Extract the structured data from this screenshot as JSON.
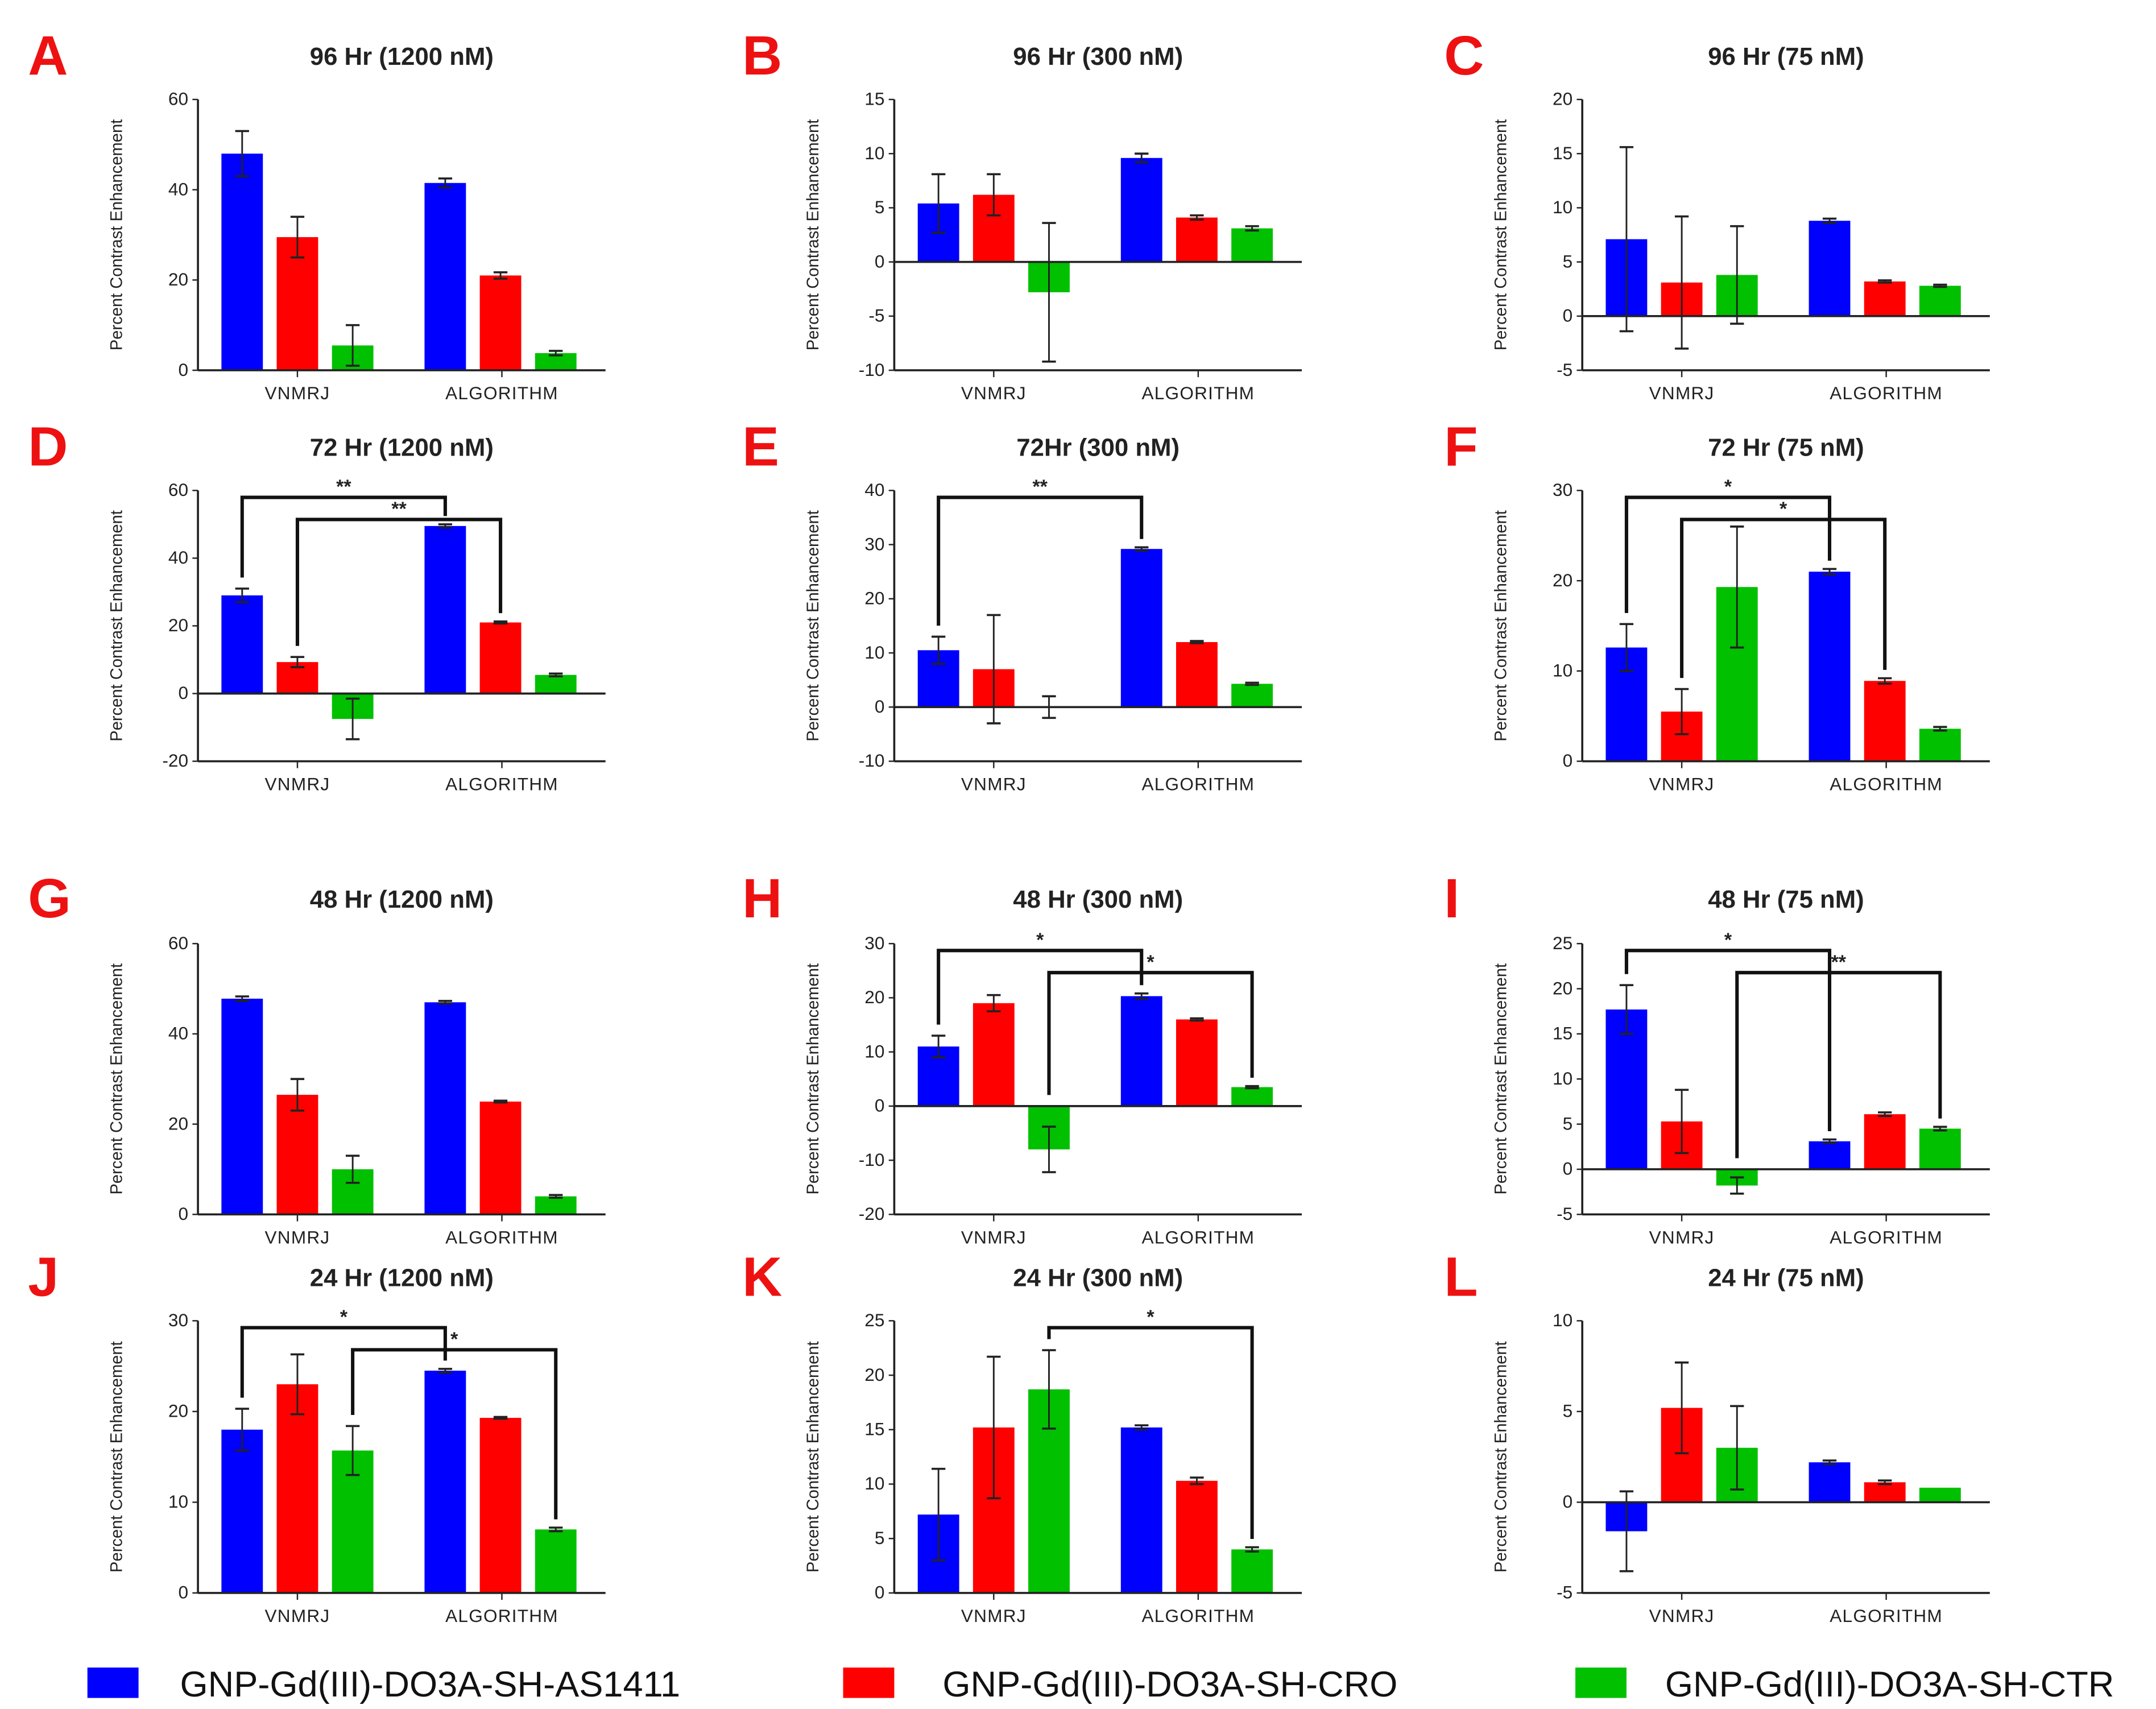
{
  "colors": {
    "letter": "#ee1111",
    "series": [
      "#0000ff",
      "#ff0000",
      "#00c000"
    ],
    "axis": "#222222"
  },
  "legend": [
    "GNP-Gd(III)-DO3A-SH-AS1411",
    "GNP-Gd(III)-DO3A-SH-CRO",
    "GNP-Gd(III)-DO3A-SH-CTR"
  ],
  "chart_data": [
    {
      "type": "bar",
      "letter": "A",
      "title": "96 Hr (1200 nM)",
      "ylabel": "Percent Contrast Enhancement",
      "categories": [
        "VNMRJ",
        "ALGORITHM"
      ],
      "ylim": [
        0,
        60
      ],
      "yticks": [
        "0",
        "20",
        "40",
        "60"
      ],
      "tickvals": [
        0,
        20,
        40,
        60
      ],
      "series": [
        {
          "name": "GNP-Gd(III)-DO3A-SH-AS1411",
          "values": [
            48,
            41.5
          ],
          "errors": [
            5,
            1
          ]
        },
        {
          "name": "GNP-Gd(III)-DO3A-SH-CRO",
          "values": [
            29.5,
            21
          ],
          "errors": [
            4.5,
            0.7
          ]
        },
        {
          "name": "GNP-Gd(III)-DO3A-SH-CTR",
          "values": [
            5.5,
            3.8
          ],
          "errors": [
            4.5,
            0.5
          ]
        }
      ],
      "significance": []
    },
    {
      "type": "bar",
      "letter": "B",
      "title": "96 Hr (300 nM)",
      "ylabel": "Percent Contrast Enhancement",
      "categories": [
        "VNMRJ",
        "ALGORITHM"
      ],
      "ylim": [
        -10,
        15
      ],
      "yticks": [
        "-10",
        "-5",
        "0",
        "5",
        "10",
        "15"
      ],
      "tickvals": [
        -10,
        -5,
        0,
        5,
        10,
        15
      ],
      "series": [
        {
          "name": "GNP-Gd(III)-DO3A-SH-AS1411",
          "values": [
            5.4,
            9.6
          ],
          "errors": [
            2.7,
            0.4
          ]
        },
        {
          "name": "GNP-Gd(III)-DO3A-SH-CRO",
          "values": [
            6.2,
            4.1
          ],
          "errors": [
            1.9,
            0.2
          ]
        },
        {
          "name": "GNP-Gd(III)-DO3A-SH-CTR",
          "values": [
            -2.8,
            3.1
          ],
          "errors": [
            6.4,
            0.2
          ]
        }
      ],
      "significance": []
    },
    {
      "type": "bar",
      "letter": "C",
      "title": "96 Hr (75 nM)",
      "ylabel": "Percent Contrast Enhancement",
      "categories": [
        "VNMRJ",
        "ALGORITHM"
      ],
      "ylim": [
        -5,
        20
      ],
      "yticks": [
        "-5",
        "0",
        "5",
        "10",
        "15",
        "20"
      ],
      "tickvals": [
        -5,
        0,
        5,
        10,
        15,
        20
      ],
      "series": [
        {
          "name": "GNP-Gd(III)-DO3A-SH-AS1411",
          "values": [
            7.1,
            8.8
          ],
          "errors": [
            8.5,
            0.2
          ]
        },
        {
          "name": "GNP-Gd(III)-DO3A-SH-CRO",
          "values": [
            3.1,
            3.2
          ],
          "errors": [
            6.1,
            0.1
          ]
        },
        {
          "name": "GNP-Gd(III)-DO3A-SH-CTR",
          "values": [
            3.8,
            2.8
          ],
          "errors": [
            4.5,
            0.1
          ]
        }
      ],
      "significance": []
    },
    {
      "type": "bar",
      "letter": "D",
      "title": "72 Hr (1200 nM)",
      "ylabel": "Percent Contrast Enhancement",
      "categories": [
        "VNMRJ",
        "ALGORITHM"
      ],
      "ylim": [
        -20,
        60
      ],
      "yticks": [
        "-20",
        "0",
        "20",
        "40",
        "60"
      ],
      "tickvals": [
        -20,
        0,
        20,
        40,
        60
      ],
      "series": [
        {
          "name": "GNP-Gd(III)-DO3A-SH-AS1411",
          "values": [
            29,
            49.5
          ],
          "errors": [
            2,
            0.5
          ]
        },
        {
          "name": "GNP-Gd(III)-DO3A-SH-CRO",
          "values": [
            9.3,
            21
          ],
          "errors": [
            1.5,
            0.3
          ]
        },
        {
          "name": "GNP-Gd(III)-DO3A-SH-CTR",
          "values": [
            -7.5,
            5.5
          ],
          "errors": [
            6,
            0.4
          ]
        }
      ],
      "significance": [
        {
          "series": 0,
          "label": "**"
        },
        {
          "series": 1,
          "label": "**"
        }
      ]
    },
    {
      "type": "bar",
      "letter": "E",
      "title": "72Hr (300 nM)",
      "ylabel": "Percent Contrast Enhancement",
      "categories": [
        "VNMRJ",
        "ALGORITHM"
      ],
      "ylim": [
        -10,
        40
      ],
      "yticks": [
        "-10",
        "0",
        "10",
        "20",
        "30",
        "40"
      ],
      "tickvals": [
        -10,
        0,
        10,
        20,
        30,
        40
      ],
      "series": [
        {
          "name": "GNP-Gd(III)-DO3A-SH-AS1411",
          "values": [
            10.5,
            29.2
          ],
          "errors": [
            2.5,
            0.3
          ]
        },
        {
          "name": "GNP-Gd(III)-DO3A-SH-CRO",
          "values": [
            7,
            12
          ],
          "errors": [
            10,
            0.2
          ]
        },
        {
          "name": "GNP-Gd(III)-DO3A-SH-CTR",
          "values": [
            0,
            4.3
          ],
          "errors": [
            2,
            0.2
          ]
        }
      ],
      "significance": [
        {
          "series": 0,
          "label": "**"
        }
      ]
    },
    {
      "type": "bar",
      "letter": "F",
      "title": "72 Hr (75 nM)",
      "ylabel": "Percent Contrast Enhancement",
      "categories": [
        "VNMRJ",
        "ALGORITHM"
      ],
      "ylim": [
        0,
        30
      ],
      "yticks": [
        "0",
        "10",
        "20",
        "30"
      ],
      "tickvals": [
        0,
        10,
        20,
        30
      ],
      "series": [
        {
          "name": "GNP-Gd(III)-DO3A-SH-AS1411",
          "values": [
            12.6,
            21
          ],
          "errors": [
            2.6,
            0.3
          ]
        },
        {
          "name": "GNP-Gd(III)-DO3A-SH-CRO",
          "values": [
            5.5,
            8.9
          ],
          "errors": [
            2.5,
            0.3
          ]
        },
        {
          "name": "GNP-Gd(III)-DO3A-SH-CTR",
          "values": [
            19.3,
            3.6
          ],
          "errors": [
            6.7,
            0.2
          ]
        }
      ],
      "significance": [
        {
          "series": 0,
          "label": "*"
        },
        {
          "series": 1,
          "label": "*"
        }
      ]
    },
    {
      "type": "bar",
      "letter": "G",
      "title": "48 Hr (1200 nM)",
      "ylabel": "Percent Contrast Enhancement",
      "categories": [
        "VNMRJ",
        "ALGORITHM"
      ],
      "ylim": [
        0,
        60
      ],
      "yticks": [
        "0",
        "20",
        "40",
        "60"
      ],
      "tickvals": [
        0,
        20,
        40,
        60
      ],
      "series": [
        {
          "name": "GNP-Gd(III)-DO3A-SH-AS1411",
          "values": [
            47.8,
            47
          ],
          "errors": [
            0.5,
            0.3
          ]
        },
        {
          "name": "GNP-Gd(III)-DO3A-SH-CRO",
          "values": [
            26.5,
            25
          ],
          "errors": [
            3.5,
            0.2
          ]
        },
        {
          "name": "GNP-Gd(III)-DO3A-SH-CTR",
          "values": [
            10,
            4
          ],
          "errors": [
            3,
            0.3
          ]
        }
      ],
      "significance": []
    },
    {
      "type": "bar",
      "letter": "H",
      "title": "48 Hr (300 nM)",
      "ylabel": "Percent Contrast Enhancement",
      "categories": [
        "VNMRJ",
        "ALGORITHM"
      ],
      "ylim": [
        -20,
        30
      ],
      "yticks": [
        "-20",
        "-10",
        "0",
        "10",
        "20",
        "30"
      ],
      "tickvals": [
        -20,
        -10,
        0,
        10,
        20,
        30
      ],
      "series": [
        {
          "name": "GNP-Gd(III)-DO3A-SH-AS1411",
          "values": [
            11,
            20.3
          ],
          "errors": [
            2,
            0.5
          ]
        },
        {
          "name": "GNP-Gd(III)-DO3A-SH-CRO",
          "values": [
            19,
            16
          ],
          "errors": [
            1.5,
            0.2
          ]
        },
        {
          "name": "GNP-Gd(III)-DO3A-SH-CTR",
          "values": [
            -8,
            3.5
          ],
          "errors": [
            4.2,
            0.2
          ]
        }
      ],
      "significance": [
        {
          "series": 0,
          "label": "*"
        },
        {
          "series": 2,
          "label": "*"
        }
      ]
    },
    {
      "type": "bar",
      "letter": "I",
      "title": "48 Hr (75 nM)",
      "ylabel": "Percent Contrast Enhancement",
      "categories": [
        "VNMRJ",
        "ALGORITHM"
      ],
      "ylim": [
        -5,
        25
      ],
      "yticks": [
        "-5",
        "0",
        "5",
        "10",
        "15",
        "20",
        "25"
      ],
      "tickvals": [
        -5,
        0,
        5,
        10,
        15,
        20,
        25
      ],
      "series": [
        {
          "name": "GNP-Gd(III)-DO3A-SH-AS1411",
          "values": [
            17.7,
            3.1
          ],
          "errors": [
            2.7,
            0.2
          ]
        },
        {
          "name": "GNP-Gd(III)-DO3A-SH-CRO",
          "values": [
            5.3,
            6.1
          ],
          "errors": [
            3.5,
            0.2
          ]
        },
        {
          "name": "GNP-Gd(III)-DO3A-SH-CTR",
          "values": [
            -1.8,
            4.5
          ],
          "errors": [
            0.9,
            0.2
          ]
        }
      ],
      "significance": [
        {
          "series": 0,
          "label": "*"
        },
        {
          "series": 2,
          "label": "**"
        }
      ]
    },
    {
      "type": "bar",
      "letter": "J",
      "title": "24 Hr (1200 nM)",
      "ylabel": "Percent Contrast Enhancement",
      "categories": [
        "VNMRJ",
        "ALGORITHM"
      ],
      "ylim": [
        0,
        30
      ],
      "yticks": [
        "0",
        "10",
        "20",
        "30"
      ],
      "tickvals": [
        0,
        10,
        20,
        30
      ],
      "series": [
        {
          "name": "GNP-Gd(III)-DO3A-SH-AS1411",
          "values": [
            18,
            24.5
          ],
          "errors": [
            2.3,
            0.2
          ]
        },
        {
          "name": "GNP-Gd(III)-DO3A-SH-CRO",
          "values": [
            23,
            19.3
          ],
          "errors": [
            3.3,
            0.1
          ]
        },
        {
          "name": "GNP-Gd(III)-DO3A-SH-CTR",
          "values": [
            15.7,
            7
          ],
          "errors": [
            2.7,
            0.2
          ]
        }
      ],
      "significance": [
        {
          "series": 0,
          "label": "*"
        },
        {
          "series": 2,
          "label": "*"
        }
      ]
    },
    {
      "type": "bar",
      "letter": "K",
      "title": "24 Hr (300 nM)",
      "ylabel": "Percent Contrast Enhancement",
      "categories": [
        "VNMRJ",
        "ALGORITHM"
      ],
      "ylim": [
        0,
        25
      ],
      "yticks": [
        "0",
        "5",
        "10",
        "15",
        "20",
        "25"
      ],
      "tickvals": [
        0,
        5,
        10,
        15,
        20,
        25
      ],
      "series": [
        {
          "name": "GNP-Gd(III)-DO3A-SH-AS1411",
          "values": [
            7.2,
            15.2
          ],
          "errors": [
            4.2,
            0.2
          ]
        },
        {
          "name": "GNP-Gd(III)-DO3A-SH-CRO",
          "values": [
            15.2,
            10.3
          ],
          "errors": [
            6.5,
            0.3
          ]
        },
        {
          "name": "GNP-Gd(III)-DO3A-SH-CTR",
          "values": [
            18.7,
            4
          ],
          "errors": [
            3.6,
            0.2
          ]
        }
      ],
      "significance": [
        {
          "series": 2,
          "label": "*"
        }
      ]
    },
    {
      "type": "bar",
      "letter": "L",
      "title": "24 Hr (75 nM)",
      "ylabel": "Percent Contrast Enhancement",
      "categories": [
        "VNMRJ",
        "ALGORITHM"
      ],
      "ylim": [
        -5,
        10
      ],
      "yticks": [
        "-5",
        "0",
        "5",
        "10"
      ],
      "tickvals": [
        -5,
        0,
        5,
        10
      ],
      "series": [
        {
          "name": "GNP-Gd(III)-DO3A-SH-AS1411",
          "values": [
            -1.6,
            2.2
          ],
          "errors": [
            2.2,
            0.1
          ]
        },
        {
          "name": "GNP-Gd(III)-DO3A-SH-CRO",
          "values": [
            5.2,
            1.1
          ],
          "errors": [
            2.5,
            0.1
          ]
        },
        {
          "name": "GNP-Gd(III)-DO3A-SH-CTR",
          "values": [
            3,
            0.8
          ],
          "errors": [
            2.3,
            0
          ]
        }
      ],
      "significance": []
    }
  ]
}
